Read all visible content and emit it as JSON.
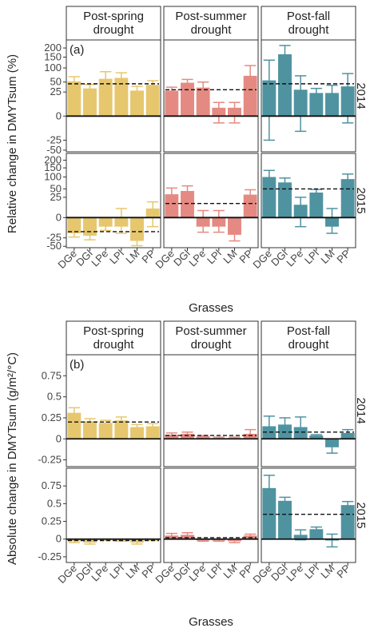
{
  "chart_data": [
    {
      "type": "bar",
      "panel_tag": "(a)",
      "ylabel": "Relative change in DMYTsum (%)",
      "xlabel": "Grasses",
      "scale": "signed square-root",
      "ylim": [
        -55,
        250
      ],
      "yticks": [
        -50,
        -25,
        0,
        25,
        50,
        100,
        150,
        200
      ],
      "columns": [
        "Post-spring drought",
        "Post-summer drought",
        "Post-fall drought"
      ],
      "rows": [
        "2014",
        "2015"
      ],
      "categories": [
        "DGe",
        "DGl",
        "LPe",
        "LPl",
        "LM",
        "PP"
      ],
      "colors": [
        "#e6c76e",
        "#e58a82",
        "#4f93a1"
      ],
      "cells": [
        [
          {
            "values": [
              52,
              33,
              60,
              63,
              28,
              42
            ],
            "err": [
              15,
              10,
              25,
              18,
              10,
              12
            ],
            "mean": 45
          },
          {
            "values": [
              28,
              48,
              35,
              3,
              3,
              70
            ],
            "err": [
              8,
              10,
              15,
              5,
              5,
              40
            ],
            "mean": 30
          },
          {
            "values": [
              55,
              165,
              30,
              23,
              23,
              38
            ],
            "err": [
              80,
              50,
              40,
              10,
              18,
              40
            ],
            "mean": 45
          }
        ],
        [
          {
            "values": [
              -15,
              -20,
              -5,
              -5,
              -33,
              5
            ],
            "err": [
              8,
              10,
              5,
              10,
              15,
              10
            ],
            "mean": -12
          },
          {
            "values": [
              33,
              43,
              -5,
              -5,
              -18,
              32
            ],
            "err": [
              20,
              18,
              8,
              8,
              15,
              15
            ],
            "mean": 12
          },
          {
            "values": [
              100,
              75,
              10,
              38,
              -5,
              90
            ],
            "err": [
              35,
              20,
              15,
              10,
              10,
              25
            ],
            "mean": 50
          }
        ]
      ]
    },
    {
      "type": "bar",
      "panel_tag": "(b)",
      "ylabel": "Absolute change in DMYTsum (g/m²/°C)",
      "xlabel": "Grasses",
      "scale": "linear",
      "ylim": [
        -0.33,
        1.0
      ],
      "yticks": [
        -0.25,
        0,
        0.25,
        0.5,
        0.75
      ],
      "columns": [
        "Post-spring drought",
        "Post-summer drought",
        "Post-fall drought"
      ],
      "rows": [
        "2014",
        "2015"
      ],
      "categories": [
        "DGe",
        "DGl",
        "LPe",
        "LPl",
        "LM",
        "PP"
      ],
      "colors": [
        "#e6c76e",
        "#e58a82",
        "#4f93a1"
      ],
      "cells": [
        [
          {
            "values": [
              0.31,
              0.21,
              0.19,
              0.22,
              0.14,
              0.15
            ],
            "err": [
              0.06,
              0.03,
              0.03,
              0.04,
              0.03,
              0.03
            ],
            "mean": 0.2
          },
          {
            "values": [
              0.05,
              0.06,
              0.03,
              0.01,
              0.01,
              0.06
            ],
            "err": [
              0.02,
              0.02,
              0.01,
              0.01,
              0.01,
              0.05
            ],
            "mean": 0.04
          },
          {
            "values": [
              0.15,
              0.17,
              0.14,
              0.04,
              -0.1,
              0.07
            ],
            "err": [
              0.12,
              0.08,
              0.12,
              0.01,
              0.07,
              0.04
            ],
            "mean": 0.08
          }
        ],
        [
          {
            "values": [
              -0.03,
              -0.05,
              -0.01,
              -0.02,
              -0.05,
              -0.01
            ],
            "err": [
              0.02,
              0.02,
              0.01,
              0.01,
              0.02,
              0.01
            ],
            "mean": -0.02
          },
          {
            "values": [
              0.05,
              0.06,
              -0.02,
              -0.02,
              -0.03,
              0.05
            ],
            "err": [
              0.03,
              0.03,
              0.01,
              0.01,
              0.02,
              0.02
            ],
            "mean": 0.02
          },
          {
            "values": [
              0.72,
              0.54,
              0.06,
              0.14,
              -0.02,
              0.48
            ],
            "err": [
              0.18,
              0.05,
              0.07,
              0.03,
              0.09,
              0.05
            ],
            "mean": 0.35
          }
        ]
      ]
    }
  ]
}
